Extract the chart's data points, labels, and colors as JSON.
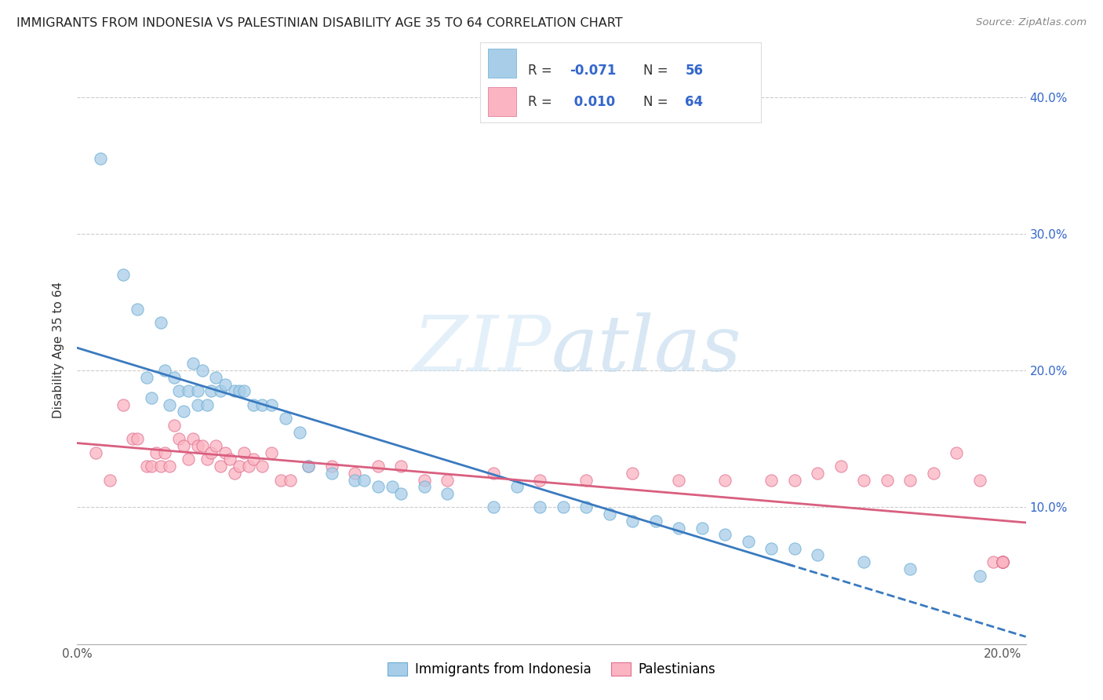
{
  "title": "IMMIGRANTS FROM INDONESIA VS PALESTINIAN DISABILITY AGE 35 TO 64 CORRELATION CHART",
  "source": "Source: ZipAtlas.com",
  "ylabel": "Disability Age 35 to 64",
  "xlim": [
    0.0,
    0.205
  ],
  "ylim": [
    0.0,
    0.43
  ],
  "x_tick_positions": [
    0.0,
    0.05,
    0.1,
    0.15,
    0.2
  ],
  "x_tick_labels": [
    "0.0%",
    "",
    "",
    "",
    "20.0%"
  ],
  "y_tick_positions": [
    0.1,
    0.2,
    0.3,
    0.4
  ],
  "y_tick_labels_right": [
    "10.0%",
    "20.0%",
    "30.0%",
    "40.0%"
  ],
  "indonesia_color": "#a8cde8",
  "indonesia_edge_color": "#6baed6",
  "palestine_color": "#fbb4c1",
  "palestine_edge_color": "#e07090",
  "indonesia_line_color": "#3a7abf",
  "palestine_line_color": "#d95f7f",
  "watermark_color": "#cce0f0",
  "legend_text_color": "#3366cc",
  "legend_label_color": "#444444",
  "indonesia_scatter_x": [
    0.005,
    0.01,
    0.013,
    0.015,
    0.016,
    0.018,
    0.019,
    0.02,
    0.021,
    0.022,
    0.023,
    0.024,
    0.025,
    0.026,
    0.026,
    0.027,
    0.028,
    0.029,
    0.03,
    0.031,
    0.032,
    0.034,
    0.035,
    0.036,
    0.038,
    0.04,
    0.042,
    0.045,
    0.048,
    0.05,
    0.055,
    0.06,
    0.062,
    0.065,
    0.068,
    0.07,
    0.075,
    0.08,
    0.09,
    0.095,
    0.1,
    0.105,
    0.11,
    0.115,
    0.12,
    0.125,
    0.13,
    0.135,
    0.14,
    0.145,
    0.15,
    0.155,
    0.16,
    0.17,
    0.18,
    0.195
  ],
  "indonesia_scatter_y": [
    0.355,
    0.27,
    0.245,
    0.195,
    0.18,
    0.235,
    0.2,
    0.175,
    0.195,
    0.185,
    0.17,
    0.185,
    0.205,
    0.185,
    0.175,
    0.2,
    0.175,
    0.185,
    0.195,
    0.185,
    0.19,
    0.185,
    0.185,
    0.185,
    0.175,
    0.175,
    0.175,
    0.165,
    0.155,
    0.13,
    0.125,
    0.12,
    0.12,
    0.115,
    0.115,
    0.11,
    0.115,
    0.11,
    0.1,
    0.115,
    0.1,
    0.1,
    0.1,
    0.095,
    0.09,
    0.09,
    0.085,
    0.085,
    0.08,
    0.075,
    0.07,
    0.07,
    0.065,
    0.06,
    0.055,
    0.05
  ],
  "palestine_scatter_x": [
    0.004,
    0.007,
    0.01,
    0.012,
    0.013,
    0.015,
    0.016,
    0.017,
    0.018,
    0.019,
    0.02,
    0.021,
    0.022,
    0.023,
    0.024,
    0.025,
    0.026,
    0.027,
    0.028,
    0.029,
    0.03,
    0.031,
    0.032,
    0.033,
    0.034,
    0.035,
    0.036,
    0.037,
    0.038,
    0.04,
    0.042,
    0.044,
    0.046,
    0.05,
    0.055,
    0.06,
    0.065,
    0.07,
    0.075,
    0.08,
    0.09,
    0.1,
    0.11,
    0.12,
    0.13,
    0.14,
    0.15,
    0.155,
    0.16,
    0.165,
    0.17,
    0.175,
    0.18,
    0.185,
    0.19,
    0.195,
    0.198,
    0.2,
    0.2,
    0.2,
    0.2,
    0.2,
    0.2,
    0.2
  ],
  "palestine_scatter_y": [
    0.14,
    0.12,
    0.175,
    0.15,
    0.15,
    0.13,
    0.13,
    0.14,
    0.13,
    0.14,
    0.13,
    0.16,
    0.15,
    0.145,
    0.135,
    0.15,
    0.145,
    0.145,
    0.135,
    0.14,
    0.145,
    0.13,
    0.14,
    0.135,
    0.125,
    0.13,
    0.14,
    0.13,
    0.135,
    0.13,
    0.14,
    0.12,
    0.12,
    0.13,
    0.13,
    0.125,
    0.13,
    0.13,
    0.12,
    0.12,
    0.125,
    0.12,
    0.12,
    0.125,
    0.12,
    0.12,
    0.12,
    0.12,
    0.125,
    0.13,
    0.12,
    0.12,
    0.12,
    0.125,
    0.14,
    0.12,
    0.06,
    0.06,
    0.06,
    0.06,
    0.06,
    0.06,
    0.06,
    0.06
  ]
}
